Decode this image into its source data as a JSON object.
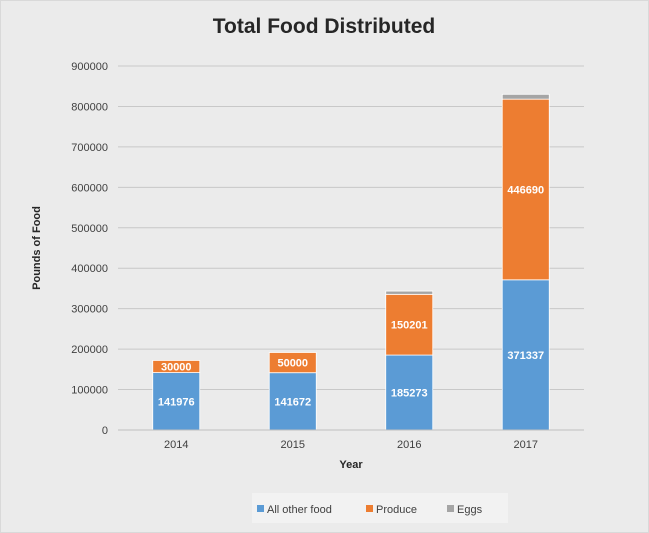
{
  "chart_data": {
    "type": "bar",
    "stacked": true,
    "title": "Total Food Distributed",
    "xlabel": "Year",
    "ylabel": "Pounds of Food",
    "categories": [
      "2014",
      "2015",
      "2016",
      "2017"
    ],
    "ylim": [
      0,
      900000
    ],
    "yticks": [
      0,
      100000,
      200000,
      300000,
      400000,
      500000,
      600000,
      700000,
      800000,
      900000
    ],
    "grid": true,
    "legend_position": "bottom",
    "series": [
      {
        "name": "All other food",
        "color": "#5b9bd5",
        "values": [
          141976,
          141672,
          185273,
          371337
        ],
        "labels": [
          "141976",
          "141672",
          "185273",
          "371337"
        ]
      },
      {
        "name": "Produce",
        "color": "#ed7d31",
        "values": [
          30000,
          50000,
          150201,
          446690
        ],
        "labels": [
          "30000",
          "50000",
          "150201",
          "446690"
        ]
      },
      {
        "name": "Eggs",
        "color": "#a5a5a5",
        "values": [
          0,
          0,
          8000,
          12000
        ],
        "labels": [
          "",
          "",
          "",
          ""
        ]
      }
    ]
  }
}
